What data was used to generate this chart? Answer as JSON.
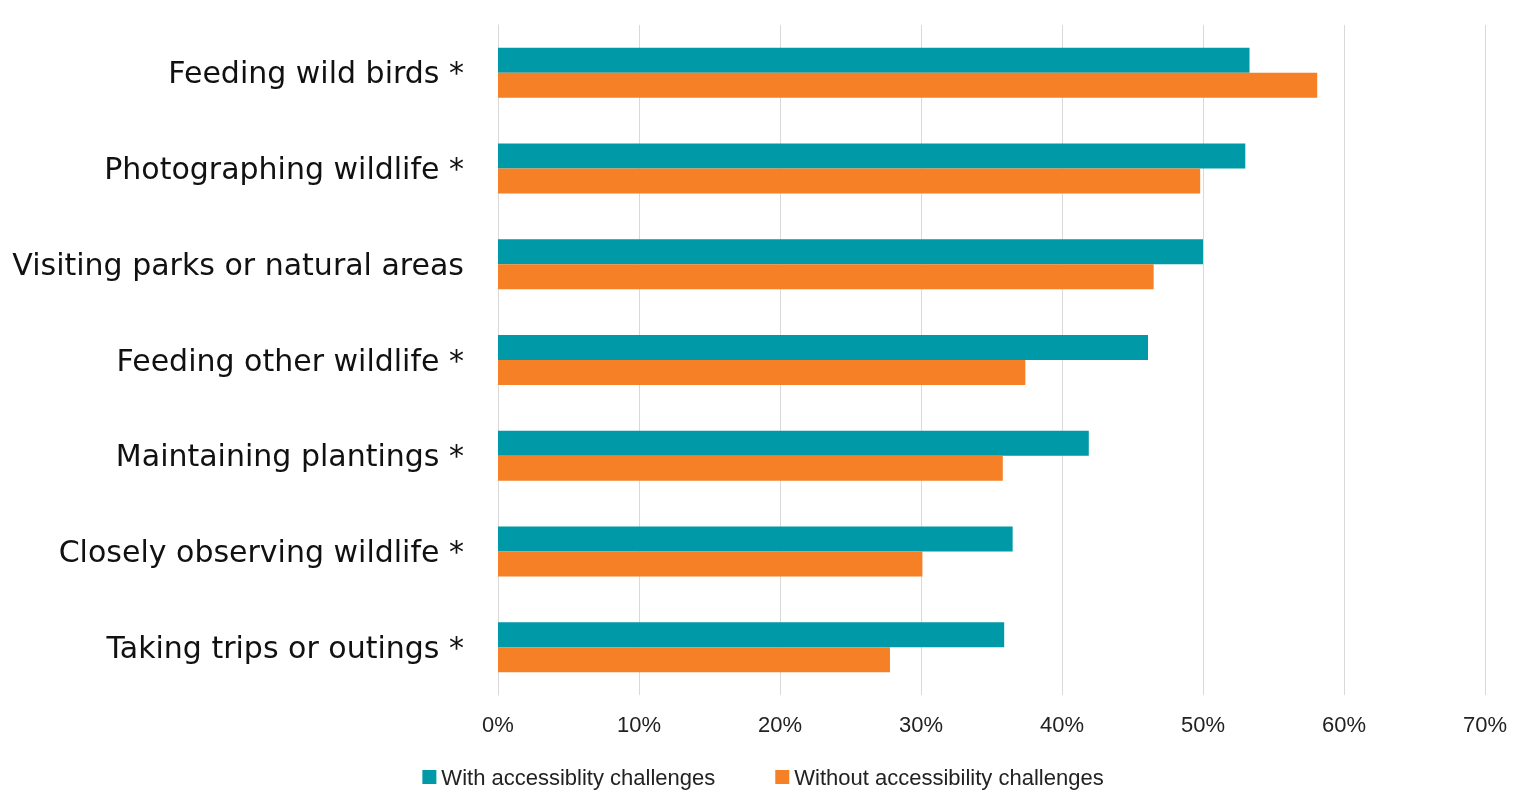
{
  "chart_data": {
    "type": "bar",
    "orientation": "horizontal",
    "categories": [
      "Feeding wild birds *",
      "Photographing wildlife *",
      "Visiting parks or natural areas",
      "Feeding other wildlife *",
      "Maintaining plantings *",
      "Closely observing wildlife *",
      "Taking trips or outings *"
    ],
    "series": [
      {
        "name": "With accessiblity challenges",
        "color": "#0099a8",
        "values": [
          53.3,
          53.0,
          50.0,
          46.1,
          41.9,
          36.5,
          35.9
        ]
      },
      {
        "name": "Without accessibility challenges",
        "color": "#f58025",
        "values": [
          58.1,
          49.8,
          46.5,
          37.4,
          35.8,
          30.1,
          27.8
        ]
      }
    ],
    "xlim": [
      0,
      70
    ],
    "xticks": [
      {
        "value": 0,
        "label": "0%"
      },
      {
        "value": 10,
        "label": "10%"
      },
      {
        "value": 20,
        "label": "20%"
      },
      {
        "value": 30,
        "label": "30%"
      },
      {
        "value": 40,
        "label": "40%"
      },
      {
        "value": 50,
        "label": "50%"
      },
      {
        "value": 60,
        "label": "60%"
      },
      {
        "value": 70,
        "label": "70%"
      }
    ],
    "grid": "x",
    "legend": "bottom"
  }
}
